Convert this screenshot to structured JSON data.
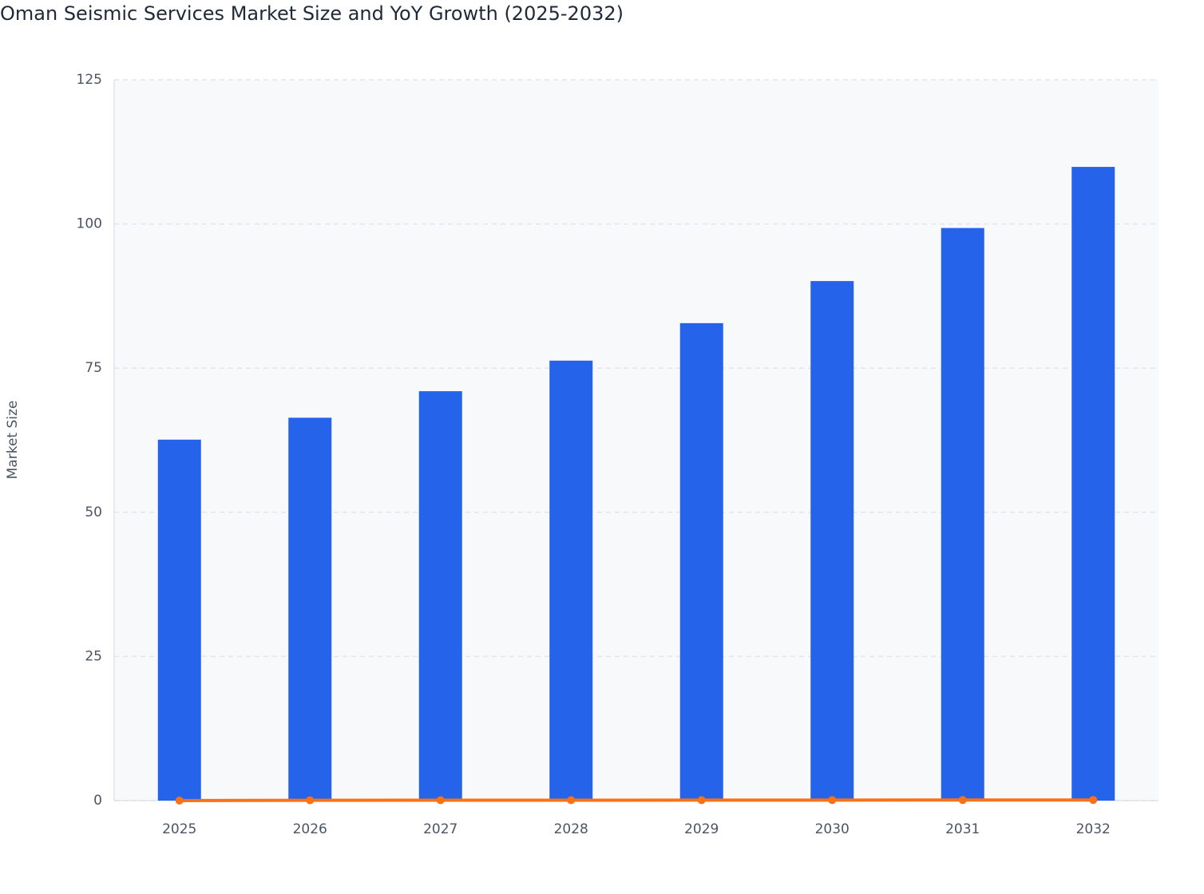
{
  "chart_data": {
    "type": "bar",
    "title": "Oman Seismic Services Market Size and YoY Growth (2025-2032)",
    "y_label": "Market Size",
    "categories": [
      "2025",
      "2026",
      "2027",
      "2028",
      "2029",
      "2030",
      "2031",
      "2032"
    ],
    "series": [
      {
        "type": "bar",
        "color": "#2563eb",
        "values": [
          62.6,
          66.4,
          71.0,
          76.3,
          82.8,
          90.1,
          99.3,
          109.9
        ]
      },
      {
        "type": "line",
        "color": "#f97316",
        "values": [
          0,
          0.06,
          0.07,
          0.07,
          0.08,
          0.09,
          0.1,
          0.11
        ]
      }
    ],
    "ylim": [
      0,
      125
    ],
    "yticks": [
      0,
      25,
      50,
      75,
      100,
      125
    ],
    "grid": true
  }
}
